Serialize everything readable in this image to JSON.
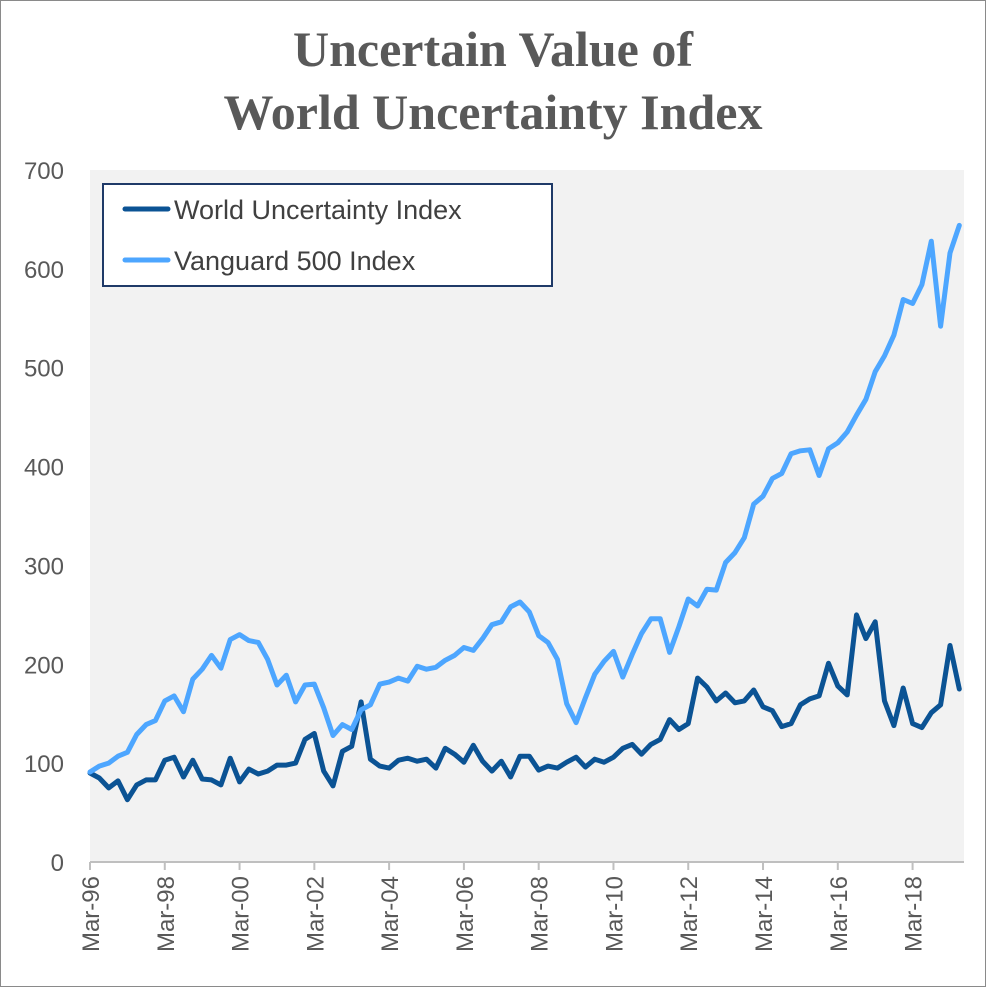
{
  "chart_data": {
    "type": "line",
    "title_line1": "Uncertain Value of",
    "title_line2": "World Uncertainty Index",
    "xlabel": "",
    "ylabel": "",
    "ylim": [
      0,
      700
    ],
    "y_ticks": [
      "0",
      "100",
      "200",
      "300",
      "400",
      "500",
      "600",
      "700"
    ],
    "x_tick_labels": [
      "Mar-96",
      "Mar-98",
      "Mar-00",
      "Mar-02",
      "Mar-04",
      "Mar-06",
      "Mar-08",
      "Mar-10",
      "Mar-12",
      "Mar-14",
      "Mar-16",
      "Mar-18"
    ],
    "x_start": "Mar-96",
    "x_step_months": 3,
    "grid": false,
    "plot_background": "#f2f2f2",
    "legend_position": "top-left",
    "series": [
      {
        "name": "World Uncertainty Index",
        "color": "#0b5394",
        "values": [
          90,
          85,
          75,
          82,
          63,
          78,
          83,
          83,
          103,
          106,
          86,
          103,
          84,
          83,
          78,
          105,
          81,
          94,
          89,
          92,
          98,
          98,
          100,
          124,
          130,
          92,
          77,
          112,
          117,
          162,
          104,
          97,
          95,
          103,
          105,
          102,
          104,
          95,
          115,
          109,
          101,
          118,
          102,
          92,
          102,
          86,
          107,
          107,
          93,
          97,
          95,
          101,
          106,
          96,
          104,
          101,
          106,
          115,
          119,
          109,
          119,
          124,
          144,
          134,
          140,
          186,
          177,
          163,
          171,
          161,
          163,
          174,
          157,
          153,
          137,
          140,
          159,
          165,
          168,
          201,
          178,
          169,
          250,
          226,
          243,
          163,
          138,
          176,
          140,
          136,
          151,
          159,
          219,
          175
        ]
      },
      {
        "name": "Vanguard 500 Index",
        "color": "#4da6ff",
        "values": [
          91,
          97,
          100,
          107,
          111,
          129,
          139,
          143,
          163,
          168,
          152,
          185,
          195,
          209,
          196,
          225,
          230,
          224,
          222,
          205,
          179,
          189,
          162,
          179,
          180,
          156,
          128,
          139,
          134,
          154,
          159,
          180,
          182,
          186,
          183,
          198,
          195,
          197,
          204,
          209,
          217,
          214,
          226,
          240,
          243,
          258,
          263,
          253,
          229,
          222,
          205,
          160,
          141,
          166,
          190,
          203,
          213,
          187,
          210,
          231,
          246,
          246,
          212,
          238,
          266,
          259,
          276,
          275,
          303,
          313,
          328,
          362,
          370,
          388,
          393,
          413,
          416,
          417,
          391,
          418,
          424,
          435,
          452,
          468,
          496,
          512,
          533,
          569,
          565,
          584,
          628,
          542,
          616,
          644
        ]
      }
    ]
  }
}
